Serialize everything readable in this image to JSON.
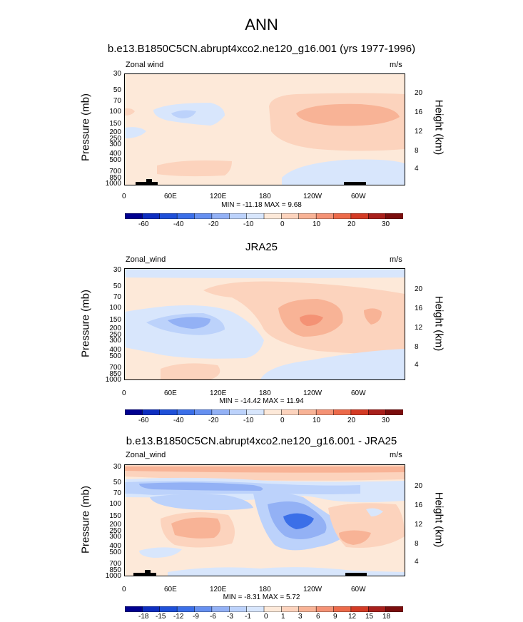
{
  "main_title": "ANN",
  "palette": {
    "wind": [
      "#00008f",
      "#0e2ec0",
      "#1f50d8",
      "#3b6fe8",
      "#6690f0",
      "#93b1f5",
      "#bcd2fb",
      "#d8e6fc",
      "#fde9d9",
      "#fcd3bd",
      "#f8b396",
      "#f49275",
      "#ec6a4a",
      "#d33b25",
      "#a8201c",
      "#7a0d0d"
    ],
    "diff": [
      "#00008f",
      "#0e2ec0",
      "#1f50d8",
      "#3b6fe8",
      "#6690f0",
      "#93b1f5",
      "#bcd2fb",
      "#d8e6fc",
      "#fde9d9",
      "#fcd3bd",
      "#f8b396",
      "#f49275",
      "#ec6a4a",
      "#d33b25",
      "#a8201c",
      "#7a0d0d"
    ]
  },
  "chart_data": [
    {
      "type": "heatmap",
      "title": "b.e13.B1850C5CN.abrupt4xco2.ne120_g16.001 (yrs 1977-1996)",
      "left_label": "Zonal wind",
      "units": "m/s",
      "ylabel": "Pressure (mb)",
      "y2label": "Height (km)",
      "xlabel": "",
      "x_ticks": [
        "0",
        "60E",
        "120E",
        "180",
        "120W",
        "60W"
      ],
      "y_ticks": [
        "30",
        "50",
        "70",
        "100",
        "150",
        "200",
        "250",
        "300",
        "400",
        "500",
        "700",
        "850",
        "1000"
      ],
      "y2_ticks": [
        "20",
        "16",
        "12",
        "8",
        "4"
      ],
      "stats": "MIN = -11.18  MAX =   9.68",
      "min": -11.18,
      "max": 9.68,
      "colorbar_labels": [
        "-60",
        "-40",
        "-20",
        "-10",
        "0",
        "10",
        "20",
        "30"
      ],
      "has_topography": true
    },
    {
      "type": "heatmap",
      "title": "JRA25",
      "left_label": "Zonal_wind",
      "units": "m/s",
      "ylabel": "Pressure (mb)",
      "y2label": "Height (km)",
      "xlabel": "",
      "x_ticks": [
        "0",
        "60E",
        "120E",
        "180",
        "120W",
        "60W"
      ],
      "y_ticks": [
        "30",
        "50",
        "70",
        "100",
        "150",
        "200",
        "250",
        "300",
        "400",
        "500",
        "700",
        "850",
        "1000"
      ],
      "y2_ticks": [
        "20",
        "16",
        "12",
        "8",
        "4"
      ],
      "stats": "MIN = -14.42  MAX =  11.94",
      "min": -14.42,
      "max": 11.94,
      "colorbar_labels": [
        "-60",
        "-40",
        "-20",
        "-10",
        "0",
        "10",
        "20",
        "30"
      ],
      "has_topography": false
    },
    {
      "type": "heatmap",
      "title": "b.e13.B1850C5CN.abrupt4xco2.ne120_g16.001 - JRA25",
      "left_label": "Zonal_wind",
      "units": "m/s",
      "ylabel": "Pressure (mb)",
      "y2label": "Height (km)",
      "xlabel": "",
      "x_ticks": [
        "0",
        "60E",
        "120E",
        "180",
        "120W",
        "60W"
      ],
      "y_ticks": [
        "30",
        "50",
        "70",
        "100",
        "150",
        "200",
        "250",
        "300",
        "400",
        "500",
        "700",
        "850",
        "1000"
      ],
      "y2_ticks": [
        "20",
        "16",
        "12",
        "8",
        "4"
      ],
      "stats": "MIN =  -8.31  MAX =   5.72",
      "min": -8.31,
      "max": 5.72,
      "colorbar_labels": [
        "-18",
        "-15",
        "-12",
        "-9",
        "-6",
        "-3",
        "-1",
        "0",
        "1",
        "3",
        "6",
        "9",
        "12",
        "15",
        "18"
      ],
      "has_topography": true
    }
  ]
}
